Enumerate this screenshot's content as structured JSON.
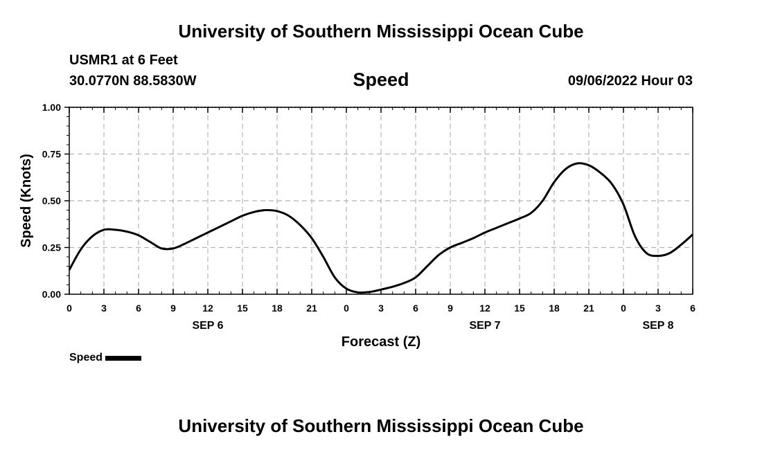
{
  "page": {
    "title_top": "University of Southern Mississippi Ocean Cube",
    "title_bottom": "University of Southern Mississippi Ocean Cube",
    "station": "USMR1 at 6 Feet",
    "coords": "30.0770N  88.5830W",
    "datetime": "09/06/2022 Hour 03"
  },
  "chart_data": {
    "type": "line",
    "title": "Speed",
    "xlabel": "Forecast (Z)",
    "ylabel": "Speed (Knots)",
    "ylim": [
      0,
      1
    ],
    "xlim": [
      0,
      54
    ],
    "grid": true,
    "y_ticks": [
      0,
      0.25,
      0.5,
      0.75,
      1
    ],
    "y_tick_labels": [
      "0.00",
      "0.25",
      "0.50",
      "0.75",
      "1.00"
    ],
    "x_ticks": [
      0,
      3,
      6,
      9,
      12,
      15,
      18,
      21,
      24,
      27,
      30,
      33,
      36,
      39,
      42,
      45,
      48,
      51,
      54
    ],
    "x_tick_labels": [
      "0",
      "3",
      "6",
      "9",
      "12",
      "15",
      "18",
      "21",
      "0",
      "3",
      "6",
      "9",
      "12",
      "15",
      "18",
      "21",
      "0",
      "3",
      "6"
    ],
    "date_labels": [
      {
        "x": 12,
        "label": "SEP 6"
      },
      {
        "x": 36,
        "label": "SEP 7"
      },
      {
        "x": 51,
        "label": "SEP 8"
      }
    ],
    "legend": {
      "position": "bottom-left",
      "label": "Speed",
      "color": "#000000"
    },
    "series": [
      {
        "name": "Speed",
        "color": "#000000",
        "x": [
          0,
          1,
          2,
          3,
          4,
          5,
          6,
          7,
          8,
          9,
          10,
          11,
          12,
          13,
          14,
          15,
          16,
          17,
          18,
          19,
          20,
          21,
          22,
          23,
          24,
          25,
          26,
          27,
          28,
          29,
          30,
          31,
          32,
          33,
          34,
          35,
          36,
          37,
          38,
          39,
          40,
          41,
          42,
          43,
          44,
          45,
          46,
          47,
          48,
          49,
          50,
          51,
          52,
          53,
          54
        ],
        "values": [
          0.13,
          0.24,
          0.31,
          0.345,
          0.345,
          0.335,
          0.315,
          0.28,
          0.245,
          0.245,
          0.27,
          0.3,
          0.33,
          0.36,
          0.39,
          0.42,
          0.44,
          0.45,
          0.445,
          0.42,
          0.37,
          0.3,
          0.2,
          0.09,
          0.03,
          0.01,
          0.012,
          0.025,
          0.04,
          0.06,
          0.09,
          0.15,
          0.21,
          0.25,
          0.275,
          0.3,
          0.33,
          0.355,
          0.38,
          0.405,
          0.435,
          0.5,
          0.6,
          0.67,
          0.7,
          0.69,
          0.65,
          0.59,
          0.48,
          0.31,
          0.22,
          0.205,
          0.22,
          0.265,
          0.32
        ]
      }
    ]
  }
}
